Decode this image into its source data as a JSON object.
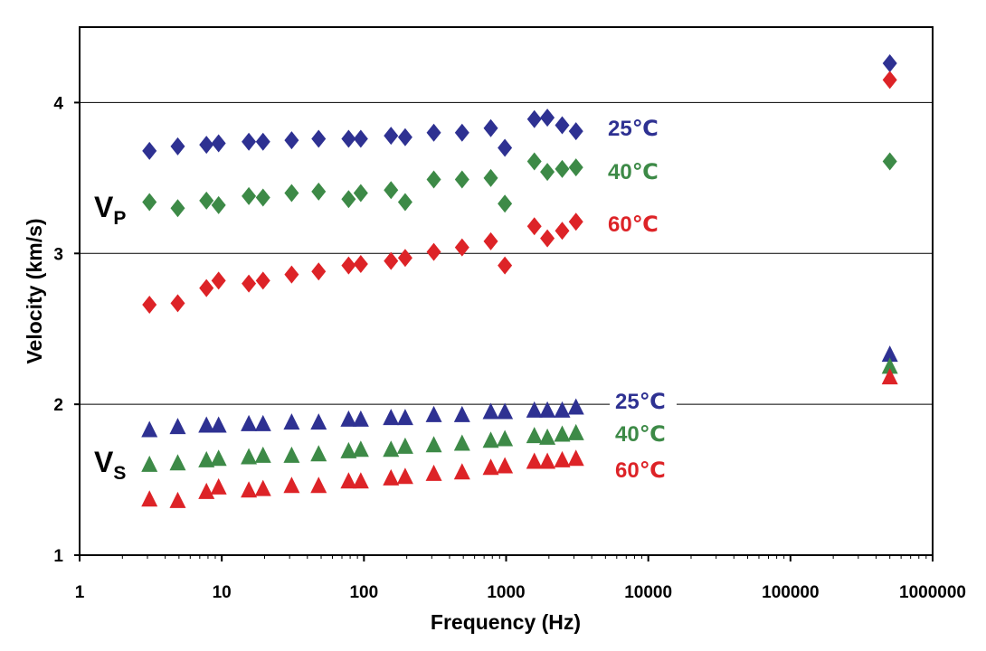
{
  "chart_data": {
    "type": "scatter",
    "xscale": "log",
    "xlabel": "Frequency  (Hz)",
    "ylabel": "Velocity  (km/s)",
    "xlim": [
      1,
      1000000
    ],
    "ylim": [
      1,
      4.5
    ],
    "xticks": [
      "1",
      "10",
      "100",
      "1000",
      "10000",
      "100000",
      "1000000"
    ],
    "yticks": [
      "1",
      "2",
      "3",
      "4"
    ],
    "grid": "horizontal",
    "groups": [
      {
        "main": "V",
        "sub": "P"
      },
      {
        "main": "V",
        "sub": "S"
      }
    ],
    "x": [
      3.1,
      4.9,
      7.8,
      9.5,
      15.5,
      19.5,
      31,
      48,
      78,
      95,
      155,
      195,
      310,
      490,
      780,
      980,
      1580,
      1950,
      2480,
      3100,
      500000
    ],
    "series": [
      {
        "name": "25℃",
        "group": "V_P",
        "marker": "diamond",
        "color": "#2e3192",
        "values": [
          3.68,
          3.71,
          3.72,
          3.73,
          3.74,
          3.74,
          3.75,
          3.76,
          3.76,
          3.76,
          3.78,
          3.77,
          3.8,
          3.8,
          3.83,
          3.7,
          3.89,
          3.9,
          3.85,
          3.81,
          4.26
        ]
      },
      {
        "name": "40℃",
        "group": "V_P",
        "marker": "diamond",
        "color": "#3d8a47",
        "values": [
          3.34,
          3.3,
          3.35,
          3.32,
          3.38,
          3.37,
          3.4,
          3.41,
          3.36,
          3.4,
          3.42,
          3.34,
          3.49,
          3.49,
          3.5,
          3.33,
          3.61,
          3.54,
          3.56,
          3.57,
          3.61
        ]
      },
      {
        "name": "60℃",
        "group": "V_P",
        "marker": "diamond",
        "color": "#dd2327",
        "values": [
          2.66,
          2.67,
          2.77,
          2.82,
          2.8,
          2.82,
          2.86,
          2.88,
          2.92,
          2.93,
          2.95,
          2.97,
          3.01,
          3.04,
          3.08,
          2.92,
          3.18,
          3.1,
          3.15,
          3.21,
          4.15
        ]
      },
      {
        "name": "25℃",
        "group": "V_S",
        "marker": "triangle",
        "color": "#2e3192",
        "values": [
          1.83,
          1.85,
          1.86,
          1.86,
          1.87,
          1.87,
          1.88,
          1.88,
          1.9,
          1.9,
          1.91,
          1.91,
          1.93,
          1.93,
          1.95,
          1.95,
          1.96,
          1.96,
          1.96,
          1.98,
          2.33
        ]
      },
      {
        "name": "40℃",
        "group": "V_S",
        "marker": "triangle",
        "color": "#3d8a47",
        "values": [
          1.6,
          1.61,
          1.63,
          1.64,
          1.65,
          1.66,
          1.66,
          1.67,
          1.69,
          1.7,
          1.7,
          1.72,
          1.73,
          1.74,
          1.76,
          1.77,
          1.79,
          1.78,
          1.8,
          1.81,
          2.25
        ]
      },
      {
        "name": "60℃",
        "group": "V_S",
        "marker": "triangle",
        "color": "#dd2327",
        "values": [
          1.37,
          1.36,
          1.42,
          1.45,
          1.43,
          1.44,
          1.46,
          1.46,
          1.49,
          1.49,
          1.51,
          1.52,
          1.54,
          1.55,
          1.58,
          1.59,
          1.62,
          1.62,
          1.63,
          1.64,
          2.18
        ]
      }
    ]
  }
}
